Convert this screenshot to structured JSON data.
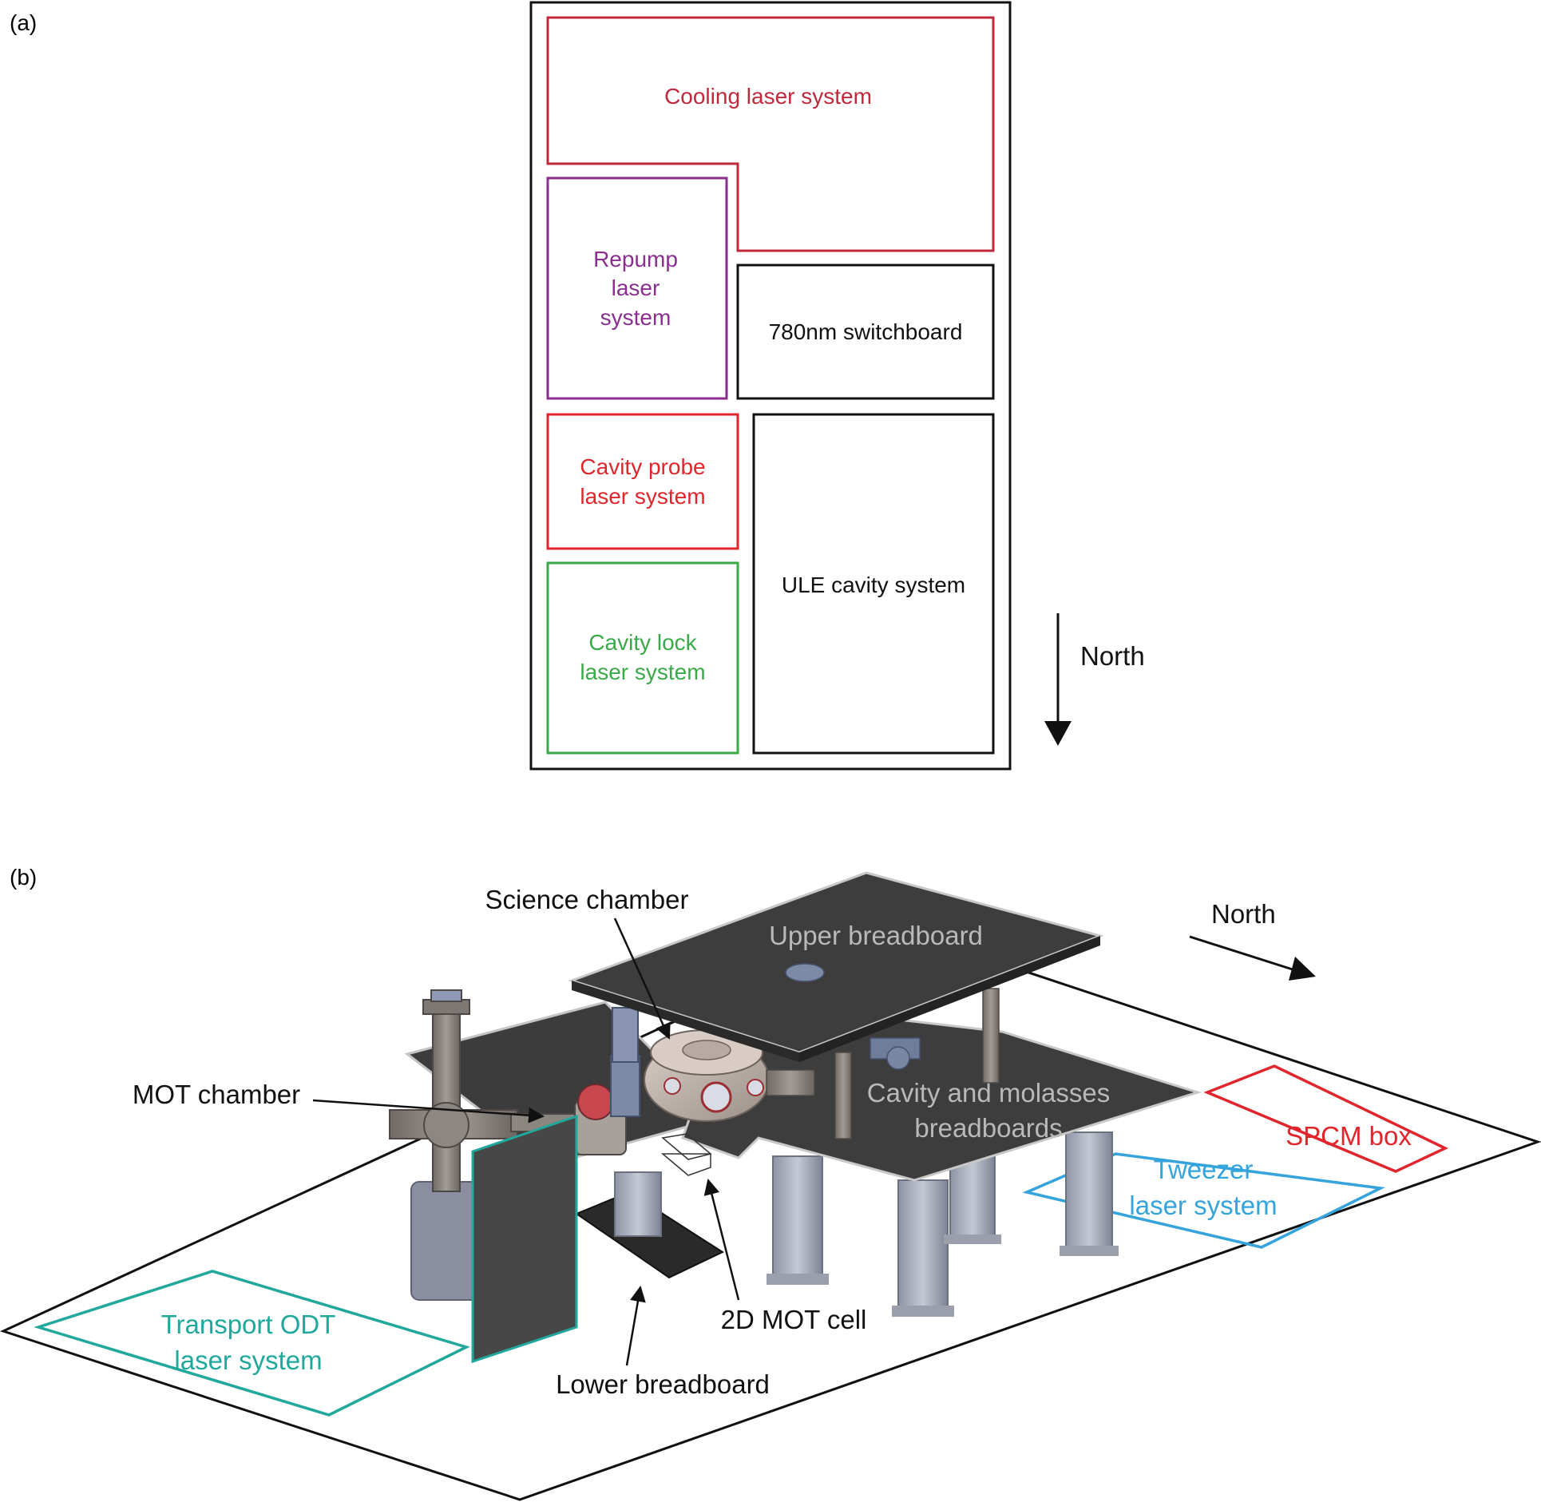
{
  "panel_a": {
    "label": "(a)",
    "regions": {
      "cooling": {
        "line1": "Cooling laser system",
        "color": "#c0283c"
      },
      "repump": {
        "line1": "Repump",
        "line2": "laser",
        "line3": "system",
        "color": "#8a2f8f"
      },
      "switchboard": {
        "line1": "780nm switchboard",
        "color": "#111111"
      },
      "cavity_probe": {
        "line1": "Cavity probe",
        "line2": "laser system",
        "color": "#e0262c"
      },
      "cavity_lock": {
        "line1": "Cavity lock",
        "line2": "laser system",
        "color": "#3aaa48"
      },
      "ule": {
        "line1": "ULE cavity system",
        "color": "#111111"
      }
    },
    "north_label": "North"
  },
  "panel_b": {
    "label": "(b)",
    "north_label": "North",
    "callouts": {
      "science_chamber": "Science chamber",
      "mot_chamber": "MOT chamber",
      "two_d_mot_cell": "2D MOT cell",
      "lower_breadboard": "Lower breadboard"
    },
    "boards": {
      "upper": "Upper breadboard",
      "cavity_line1": "Cavity and molasses",
      "cavity_line2": "breadboards"
    },
    "footprints": {
      "spcm": {
        "line1": "SPCM box",
        "color": "#e0262c"
      },
      "tweezer": {
        "line1": "Tweezer",
        "line2": "laser system",
        "color": "#35a3dc"
      },
      "transport": {
        "line1": "Transport ODT",
        "line2": "laser system",
        "color": "#1fa89b"
      }
    }
  }
}
